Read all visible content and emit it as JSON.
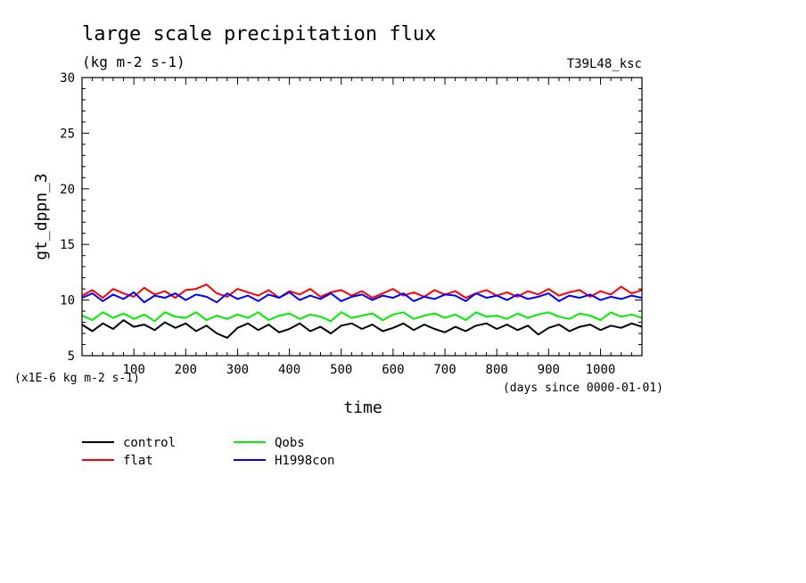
{
  "chart_data": {
    "type": "line",
    "title": "large scale precipitation flux",
    "subtitle": "(kg m-2 s-1)",
    "run_label": "T39L48_ksc",
    "xlabel": "time",
    "x_units": "(days since 0000-01-01)",
    "ylabel": "gt_dppn_3",
    "y_units": "(x1E-6 kg m-2 s-1)",
    "xlim": [
      0,
      1080
    ],
    "ylim": [
      5,
      30
    ],
    "x_ticks": [
      100,
      200,
      300,
      400,
      500,
      600,
      700,
      800,
      900,
      1000
    ],
    "y_ticks": [
      5,
      10,
      15,
      20,
      25,
      30
    ],
    "grid": false,
    "legend_position": "bottom-left",
    "x": [
      0,
      20,
      40,
      60,
      80,
      100,
      120,
      140,
      160,
      180,
      200,
      220,
      240,
      260,
      280,
      300,
      320,
      340,
      360,
      380,
      400,
      420,
      440,
      460,
      480,
      500,
      520,
      540,
      560,
      580,
      600,
      620,
      640,
      660,
      680,
      700,
      720,
      740,
      760,
      780,
      800,
      820,
      840,
      860,
      880,
      900,
      920,
      940,
      960,
      980,
      1000,
      1020,
      1040,
      1060,
      1080
    ],
    "series": [
      {
        "name": "control",
        "color": "#000000",
        "values": [
          7.8,
          7.2,
          7.9,
          7.4,
          8.2,
          7.6,
          7.8,
          7.3,
          8.0,
          7.5,
          7.9,
          7.2,
          7.7,
          7.0,
          6.6,
          7.5,
          7.9,
          7.3,
          7.8,
          7.1,
          7.4,
          7.9,
          7.2,
          7.6,
          7.0,
          7.7,
          7.9,
          7.4,
          7.8,
          7.2,
          7.5,
          7.9,
          7.3,
          7.8,
          7.4,
          7.1,
          7.6,
          7.2,
          7.7,
          7.9,
          7.4,
          7.8,
          7.3,
          7.7,
          6.9,
          7.5,
          7.8,
          7.2,
          7.6,
          7.8,
          7.3,
          7.7,
          7.5,
          7.9,
          7.6
        ]
      },
      {
        "name": "Qobs",
        "color": "#00ee00",
        "values": [
          8.6,
          8.2,
          8.9,
          8.4,
          8.8,
          8.3,
          8.7,
          8.1,
          8.9,
          8.5,
          8.4,
          8.9,
          8.2,
          8.6,
          8.3,
          8.7,
          8.4,
          8.9,
          8.2,
          8.6,
          8.8,
          8.3,
          8.7,
          8.5,
          8.1,
          8.9,
          8.4,
          8.6,
          8.8,
          8.2,
          8.7,
          8.9,
          8.3,
          8.6,
          8.8,
          8.4,
          8.7,
          8.2,
          8.9,
          8.5,
          8.6,
          8.3,
          8.8,
          8.4,
          8.7,
          8.9,
          8.5,
          8.3,
          8.8,
          8.6,
          8.2,
          8.9,
          8.5,
          8.7,
          8.4
        ]
      },
      {
        "name": "flat",
        "color": "#ff0000",
        "values": [
          10.4,
          10.9,
          10.2,
          11.0,
          10.6,
          10.3,
          11.1,
          10.5,
          10.8,
          10.2,
          10.9,
          11.0,
          11.4,
          10.6,
          10.3,
          11.0,
          10.7,
          10.4,
          10.9,
          10.2,
          10.8,
          10.5,
          11.0,
          10.3,
          10.7,
          10.9,
          10.4,
          10.8,
          10.2,
          10.6,
          11.0,
          10.4,
          10.7,
          10.3,
          10.9,
          10.5,
          10.8,
          10.2,
          10.6,
          10.9,
          10.4,
          10.7,
          10.3,
          10.8,
          10.5,
          11.0,
          10.4,
          10.7,
          10.9,
          10.3,
          10.8,
          10.5,
          11.2,
          10.6,
          10.9
        ]
      },
      {
        "name": "H1998con",
        "color": "#0000ff",
        "values": [
          10.2,
          10.6,
          9.9,
          10.5,
          10.1,
          10.7,
          9.8,
          10.4,
          10.2,
          10.6,
          10.0,
          10.5,
          10.3,
          9.8,
          10.6,
          10.1,
          10.4,
          9.9,
          10.5,
          10.2,
          10.7,
          10.0,
          10.4,
          10.1,
          10.6,
          9.9,
          10.3,
          10.5,
          10.0,
          10.4,
          10.2,
          10.6,
          9.9,
          10.3,
          10.1,
          10.5,
          10.4,
          9.9,
          10.6,
          10.2,
          10.4,
          10.0,
          10.5,
          10.1,
          10.3,
          10.6,
          9.9,
          10.4,
          10.2,
          10.5,
          10.0,
          10.3,
          10.1,
          10.4,
          10.2
        ]
      }
    ]
  }
}
